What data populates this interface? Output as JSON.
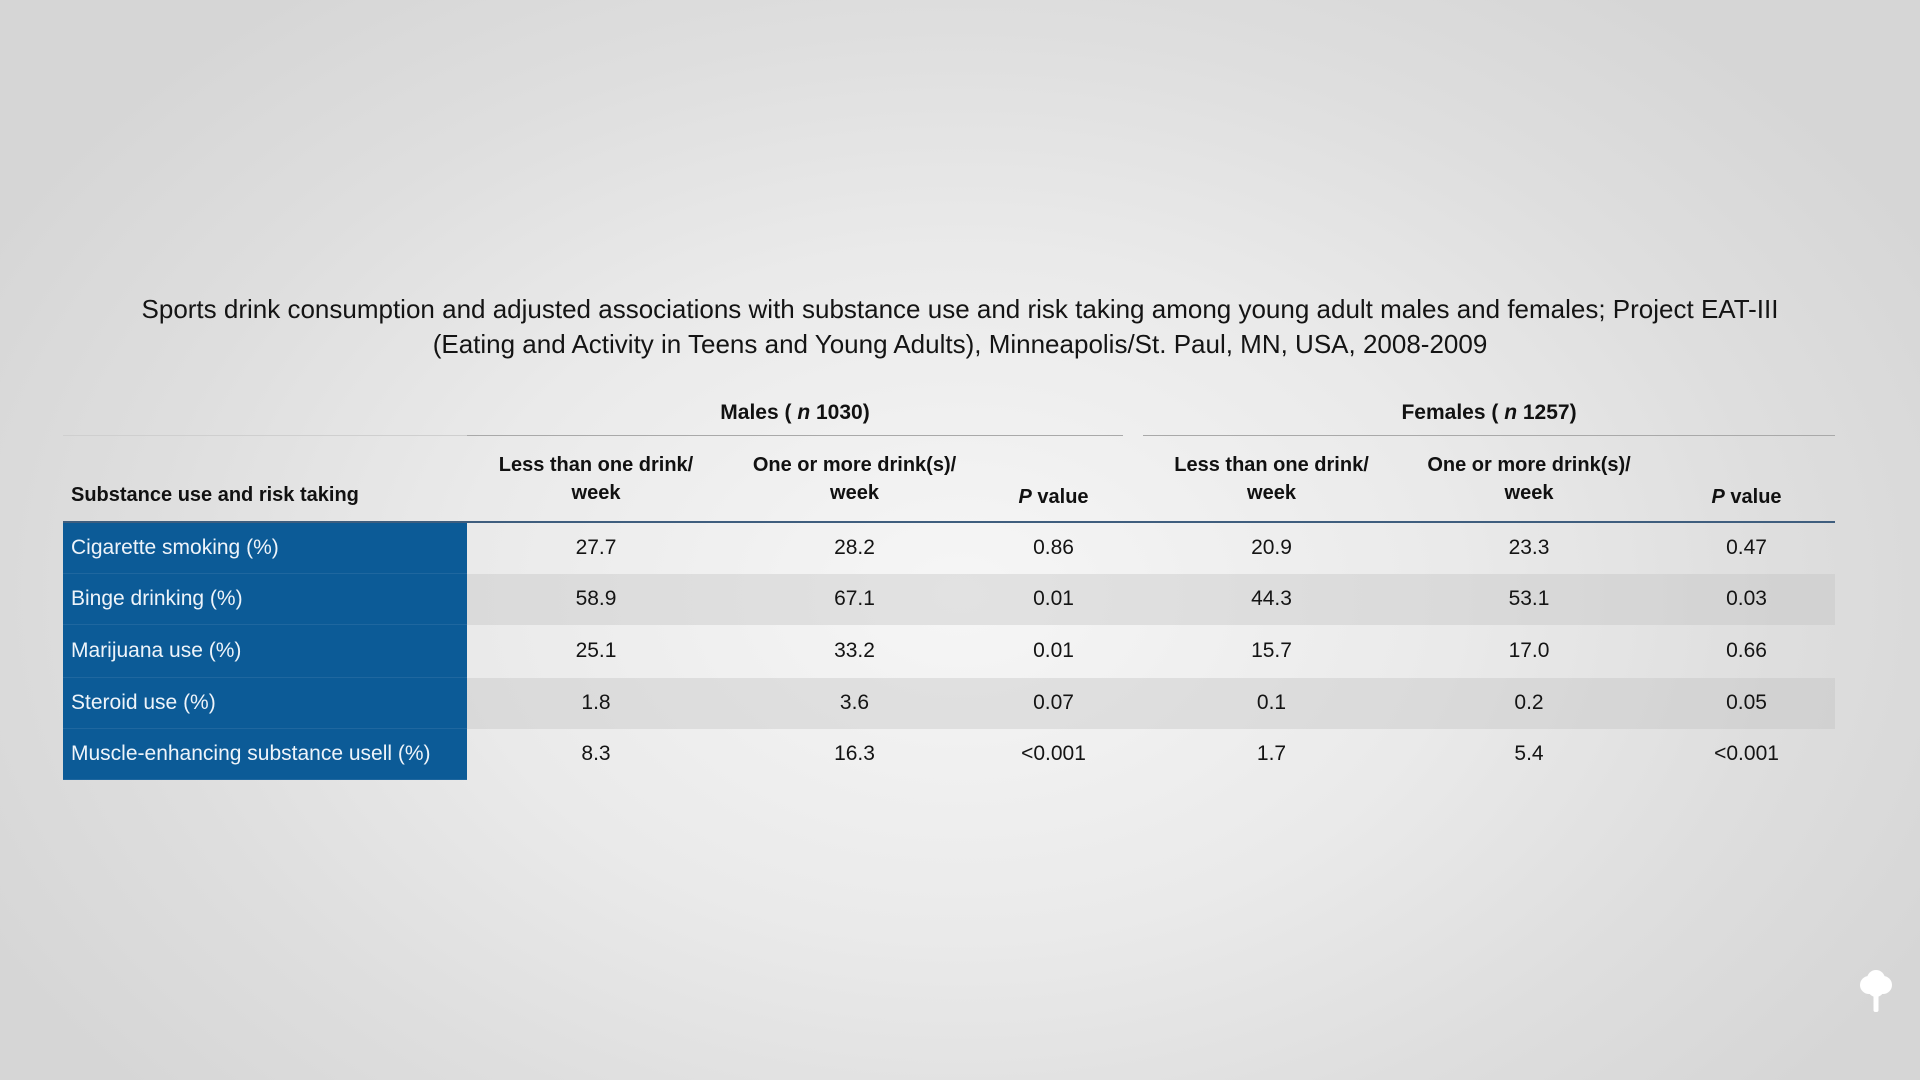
{
  "title": {
    "line1": "Sports drink consumption and adjusted associations with substance use and risk taking among young adult males and females; Project EAT-III",
    "line2": "(Eating and Activity in Teens and Young Adults), Minneapolis/St. Paul, MN, USA, 2008-2009"
  },
  "groups": {
    "males": {
      "prefix": "Males ( ",
      "n": "n",
      "suffix": " 1030)"
    },
    "females": {
      "prefix": "Females ( ",
      "n": "n",
      "suffix": " 1257)"
    }
  },
  "columns": {
    "rowhead": "Substance use and risk taking",
    "less_line1": "Less than one drink/",
    "less_line2": "week",
    "more_line1": "One or more drink(s)/",
    "more_line2": "week",
    "p_italic": "P",
    "p_rest": " value"
  },
  "rows": [
    {
      "label": "Cigarette smoking (%)",
      "m_less": "27.7",
      "m_more": "28.2",
      "m_p": "0.86",
      "f_less": "20.9",
      "f_more": "23.3",
      "f_p": "0.47"
    },
    {
      "label": "Binge drinking (%)",
      "m_less": "58.9",
      "m_more": "67.1",
      "m_p": "0.01",
      "f_less": "44.3",
      "f_more": "53.1",
      "f_p": "0.03"
    },
    {
      "label": "Marijuana use (%)",
      "m_less": "25.1",
      "m_more": "33.2",
      "m_p": "0.01",
      "f_less": "15.7",
      "f_more": "17.0",
      "f_p": "0.66"
    },
    {
      "label": "Steroid use (%)",
      "m_less": "1.8",
      "m_more": "3.6",
      "m_p": "0.07",
      "f_less": "0.1",
      "f_more": "0.2",
      "f_p": "0.05"
    },
    {
      "label": "Muscle-enhancing substance usell (%)",
      "m_less": "8.3",
      "m_more": "16.3",
      "m_p": "<0.001",
      "f_less": "1.7",
      "f_more": "5.4",
      "f_p": "<0.001"
    }
  ],
  "colors": {
    "label_column": "#0c5b97",
    "header_rule": "#3f5e7e"
  },
  "icons": {
    "logo": "tree-logo-icon"
  }
}
